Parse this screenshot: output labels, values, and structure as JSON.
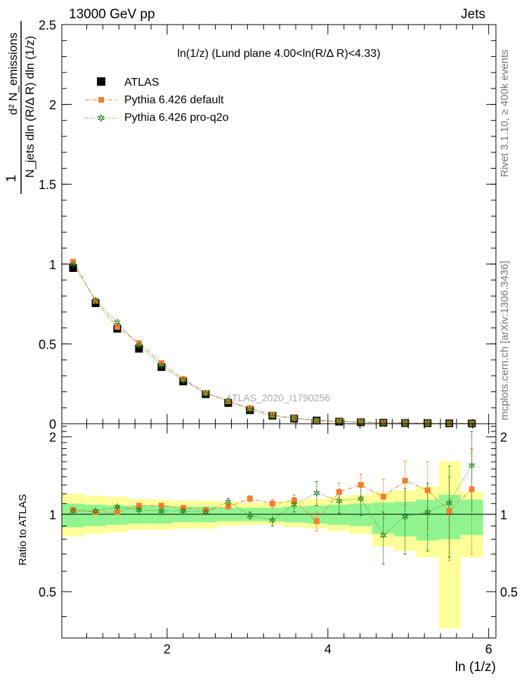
{
  "header": {
    "energy_label": "13000 GeV pp",
    "process_label": "Jets",
    "side_rivet": "Rivet 3.1.10, ≥ 400k events",
    "side_mcplots": "mcplots.cern.ch [arXiv:1306.3436]",
    "watermark": "ATLAS_2020_I1790256"
  },
  "chart_data": [
    {
      "type": "scatter",
      "panel": "main",
      "title": "ln(1/z) (Lund plane 4.00<ln(R/Δ R)<4.33)",
      "xlabel": "ln (1/z)",
      "ylabel_top": "d² N_emissions",
      "ylabel_bottom": "N_jets dln (R/Δ R) dln (1/z)",
      "ylabel_one": "1",
      "xlim": [
        0.69,
        6.09
      ],
      "ylim": [
        0,
        2.5
      ],
      "yticks": [
        0,
        0.5,
        1,
        1.5,
        2,
        2.5
      ],
      "ytick_labels": [
        "0",
        "0.5",
        "1",
        "1.5",
        "2",
        "2.5"
      ],
      "x": [
        0.83,
        1.11,
        1.38,
        1.65,
        1.93,
        2.2,
        2.48,
        2.76,
        3.03,
        3.31,
        3.58,
        3.86,
        4.14,
        4.41,
        4.69,
        4.96,
        5.24,
        5.51,
        5.79
      ],
      "legend": [
        {
          "label": "ATLAS",
          "series": "ATLAS"
        },
        {
          "label": "Pythia 6.426 default",
          "series": "default"
        },
        {
          "label": "Pythia 6.426 pro-q2o",
          "series": "proq2o"
        }
      ],
      "series": [
        {
          "name": "ATLAS",
          "color": "#000000",
          "marker": "square",
          "values": [
            0.975,
            0.755,
            0.595,
            0.47,
            0.355,
            0.265,
            0.185,
            0.13,
            0.085,
            0.05,
            0.032,
            0.02,
            0.013,
            0.009,
            0.006,
            0.004,
            0.003,
            0.002,
            0.0015
          ]
        },
        {
          "name": "default",
          "color": "#f07f2f",
          "marker": "square-small",
          "values": [
            1.015,
            0.77,
            0.605,
            0.505,
            0.38,
            0.28,
            0.193,
            0.14,
            0.098,
            0.055,
            0.035,
            0.018,
            0.015,
            0.011,
            0.007,
            0.005,
            0.0037,
            0.002,
            0.0018
          ]
        },
        {
          "name": "proq2o",
          "color": "#1a7a1a",
          "marker": "star",
          "values": [
            1.0,
            0.775,
            0.635,
            0.49,
            0.365,
            0.272,
            0.19,
            0.145,
            0.087,
            0.047,
            0.035,
            0.023,
            0.014,
            0.0105,
            0.005,
            0.004,
            0.003,
            0.0022,
            0.0024
          ]
        }
      ]
    },
    {
      "type": "scatter",
      "panel": "ratio",
      "ylabel": "Ratio to ATLAS",
      "xlabel": "ln (1/z)",
      "xlim": [
        0.69,
        6.09
      ],
      "ylim": [
        0.33,
        2.25
      ],
      "yticks": [
        0.5,
        1,
        2
      ],
      "ytick_labels": [
        "0.5",
        "1",
        "2"
      ],
      "xticks": [
        2,
        4,
        6
      ],
      "xtick_labels": [
        "2",
        "4",
        "6"
      ],
      "x": [
        0.83,
        1.11,
        1.38,
        1.65,
        1.93,
        2.2,
        2.48,
        2.76,
        3.03,
        3.31,
        3.58,
        3.86,
        4.14,
        4.41,
        4.69,
        4.96,
        5.24,
        5.51,
        5.79
      ],
      "bin_edges": [
        0.69,
        0.97,
        1.24,
        1.51,
        1.79,
        2.06,
        2.34,
        2.62,
        2.89,
        3.17,
        3.44,
        3.72,
        4.0,
        4.27,
        4.55,
        4.82,
        5.1,
        5.38,
        5.65,
        5.93
      ],
      "band_outer": [
        [
          0.82,
          1.2
        ],
        [
          0.84,
          1.18
        ],
        [
          0.85,
          1.17
        ],
        [
          0.87,
          1.15
        ],
        [
          0.87,
          1.14
        ],
        [
          0.88,
          1.13
        ],
        [
          0.88,
          1.13
        ],
        [
          0.9,
          1.12
        ],
        [
          0.91,
          1.11
        ],
        [
          0.91,
          1.11
        ],
        [
          0.89,
          1.13
        ],
        [
          0.88,
          1.15
        ],
        [
          0.86,
          1.17
        ],
        [
          0.84,
          1.19
        ],
        [
          0.75,
          1.22
        ],
        [
          0.72,
          1.24
        ],
        [
          0.68,
          1.28
        ],
        [
          0.36,
          1.61
        ],
        [
          0.68,
          1.22
        ]
      ],
      "band_inner": [
        [
          0.89,
          1.1
        ],
        [
          0.9,
          1.09
        ],
        [
          0.91,
          1.08
        ],
        [
          0.92,
          1.08
        ],
        [
          0.92,
          1.08
        ],
        [
          0.93,
          1.07
        ],
        [
          0.93,
          1.07
        ],
        [
          0.94,
          1.06
        ],
        [
          0.94,
          1.06
        ],
        [
          0.94,
          1.06
        ],
        [
          0.93,
          1.07
        ],
        [
          0.92,
          1.08
        ],
        [
          0.91,
          1.09
        ],
        [
          0.9,
          1.1
        ],
        [
          0.84,
          1.11
        ],
        [
          0.82,
          1.12
        ],
        [
          0.79,
          1.14
        ],
        [
          0.8,
          1.19
        ],
        [
          0.83,
          1.14
        ]
      ],
      "series": [
        {
          "name": "default",
          "color": "#f07f2f",
          "values": [
            1.04,
            1.02,
            1.02,
            1.08,
            1.08,
            1.06,
            1.04,
            1.07,
            1.15,
            1.1,
            1.13,
            0.94,
            1.22,
            1.3,
            1.17,
            1.35,
            1.24,
            1.03,
            1.25
          ],
          "errors": [
            0.01,
            0.01,
            0.01,
            0.01,
            0.01,
            0.01,
            0.01,
            0.02,
            0.03,
            0.04,
            0.06,
            0.08,
            0.1,
            0.13,
            0.2,
            0.26,
            0.36,
            0.37,
            0.55
          ]
        },
        {
          "name": "proq2o",
          "color": "#1a7a1a",
          "values": [
            1.03,
            1.03,
            1.07,
            1.04,
            1.03,
            1.03,
            1.02,
            1.12,
            0.99,
            0.95,
            1.09,
            1.21,
            1.13,
            1.15,
            0.83,
            0.98,
            1.02,
            1.11,
            1.55
          ],
          "errors": [
            0.01,
            0.01,
            0.01,
            0.01,
            0.01,
            0.01,
            0.02,
            0.03,
            0.03,
            0.05,
            0.07,
            0.13,
            0.12,
            0.16,
            0.19,
            0.28,
            0.3,
            0.43,
            0.55
          ]
        }
      ]
    }
  ]
}
